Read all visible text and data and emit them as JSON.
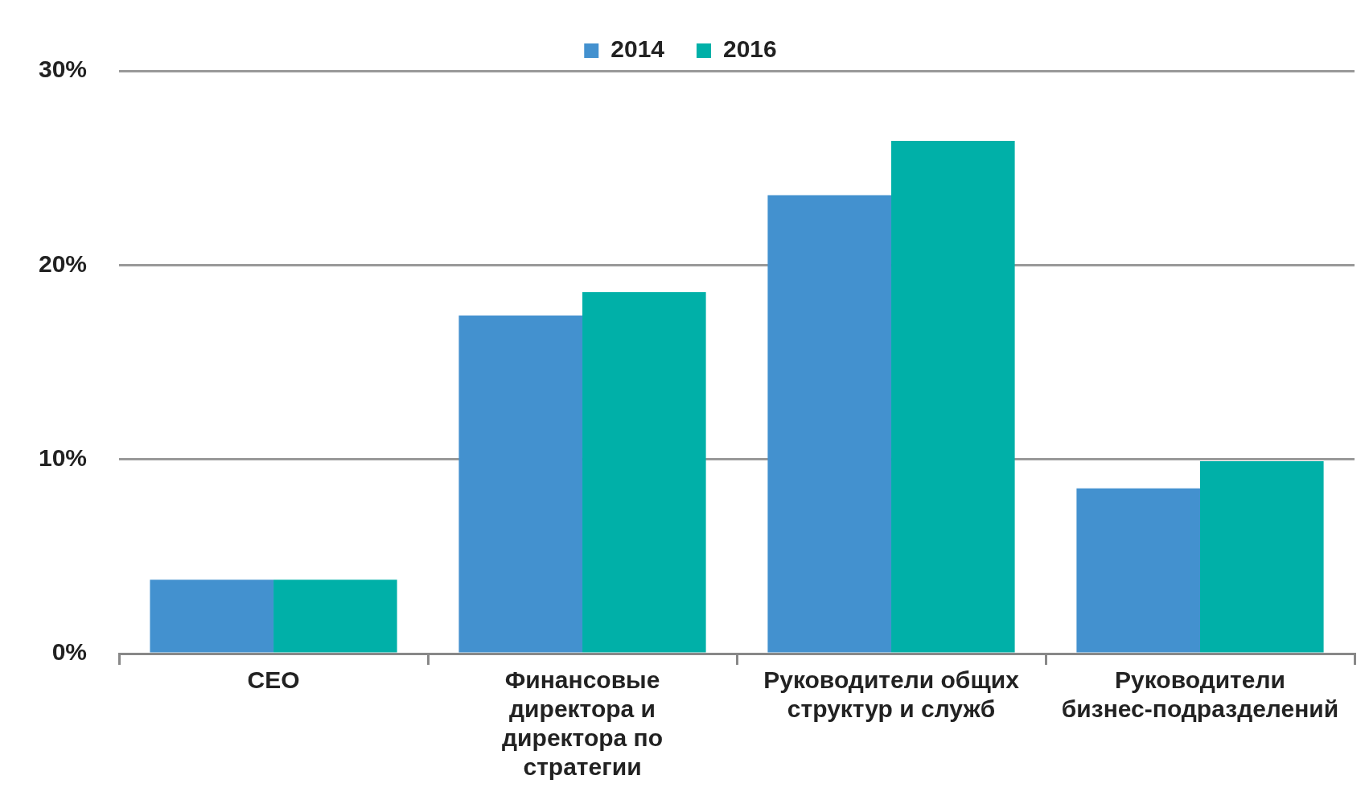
{
  "chart_data": {
    "type": "bar",
    "categories": [
      "CEO",
      "Финансовые директора и директора по стратегии",
      "Руководители общих структур и служб",
      "Руководители бизнес-подразделений"
    ],
    "series": [
      {
        "name": "2014",
        "color": "#4391cf",
        "values": [
          3.8,
          17.4,
          23.6,
          8.5
        ]
      },
      {
        "name": "2016",
        "color": "#00b0a8",
        "values": [
          3.8,
          18.6,
          26.4,
          9.9
        ]
      }
    ],
    "ylim": [
      0,
      30
    ],
    "yticks": [
      {
        "value": 0,
        "label": "0%"
      },
      {
        "value": 10,
        "label": "10%"
      },
      {
        "value": 20,
        "label": "20%"
      },
      {
        "value": 30,
        "label": "30%"
      }
    ],
    "grid": "y",
    "legend": "top"
  }
}
